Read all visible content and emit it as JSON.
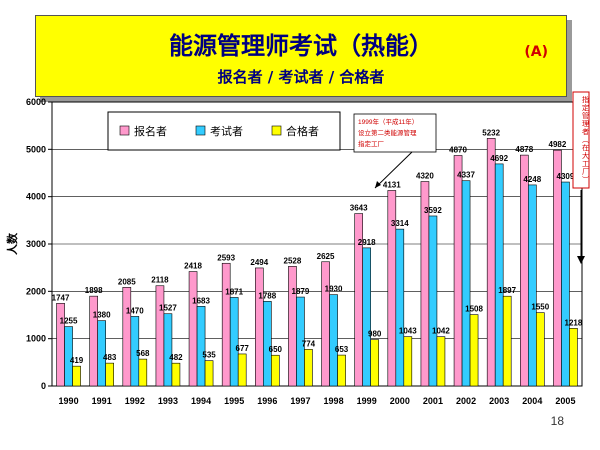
{
  "slide": {
    "title": "能源管理师考试（热能）",
    "subtitle": "报名者 / 考试者 / 合格者",
    "badge": "(A)",
    "page_number": "18"
  },
  "colors": {
    "applicants": "#ff99cc",
    "examinees": "#33ccff",
    "passers": "#ffff00",
    "title_band": "#ffff00",
    "title_text": "#000080"
  },
  "annotations": {
    "note_1999": [
      "1999年（平成11年）",
      "设立第二类能源管理",
      "指定工厂"
    ],
    "side_note": "指定管理者（在大工厂）"
  },
  "chart_data": {
    "type": "bar",
    "title": "",
    "xlabel": "",
    "ylabel": "人数",
    "ylim": [
      0,
      6000
    ],
    "yticks": [
      0,
      1000,
      2000,
      3000,
      4000,
      5000,
      6000
    ],
    "grid": true,
    "legend_position": "top-left",
    "categories": [
      "1990",
      "1991",
      "1992",
      "1993",
      "1994",
      "1995",
      "1996",
      "1997",
      "1998",
      "1999",
      "2000",
      "2001",
      "2002",
      "2003",
      "2004",
      "2005"
    ],
    "series": [
      {
        "name": "报名者",
        "values": [
          1747,
          1898,
          2085,
          2118,
          2418,
          2593,
          2494,
          2528,
          2625,
          3643,
          4131,
          4320,
          4870,
          5232,
          4878,
          4982
        ]
      },
      {
        "name": "考试者",
        "values": [
          1255,
          1380,
          1470,
          1527,
          1683,
          1871,
          1788,
          1879,
          1930,
          2918,
          3314,
          3592,
          4337,
          4692,
          4248,
          4309
        ]
      },
      {
        "name": "合格者",
        "values": [
          419,
          483,
          568,
          482,
          535,
          677,
          650,
          774,
          653,
          980,
          1043,
          1042,
          1508,
          1897,
          1550,
          1218
        ]
      }
    ]
  }
}
